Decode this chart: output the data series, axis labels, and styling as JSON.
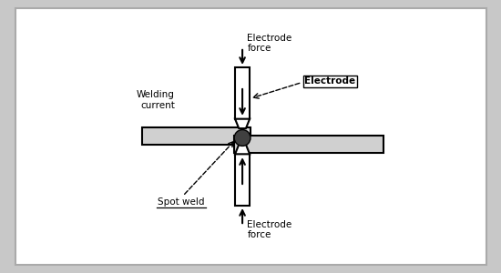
{
  "background_color": "#c8c8c8",
  "panel_color": "#ffffff",
  "electrode_color": "#ffffff",
  "electrode_edge": "#000000",
  "workpiece_color": "#d0d0d0",
  "workpiece_edge": "#000000",
  "spot_color": "#404040",
  "text_color": "#000000",
  "labels": {
    "electrode_force_top": "Electrode\nforce",
    "welding_current": "Welding\ncurrent",
    "electrode": "Electrode",
    "spot_weld": "Spot weld",
    "electrode_force_bot": "Electrode\nforce"
  },
  "fig_width": 5.5,
  "fig_height": 3.0,
  "dpi": 100
}
